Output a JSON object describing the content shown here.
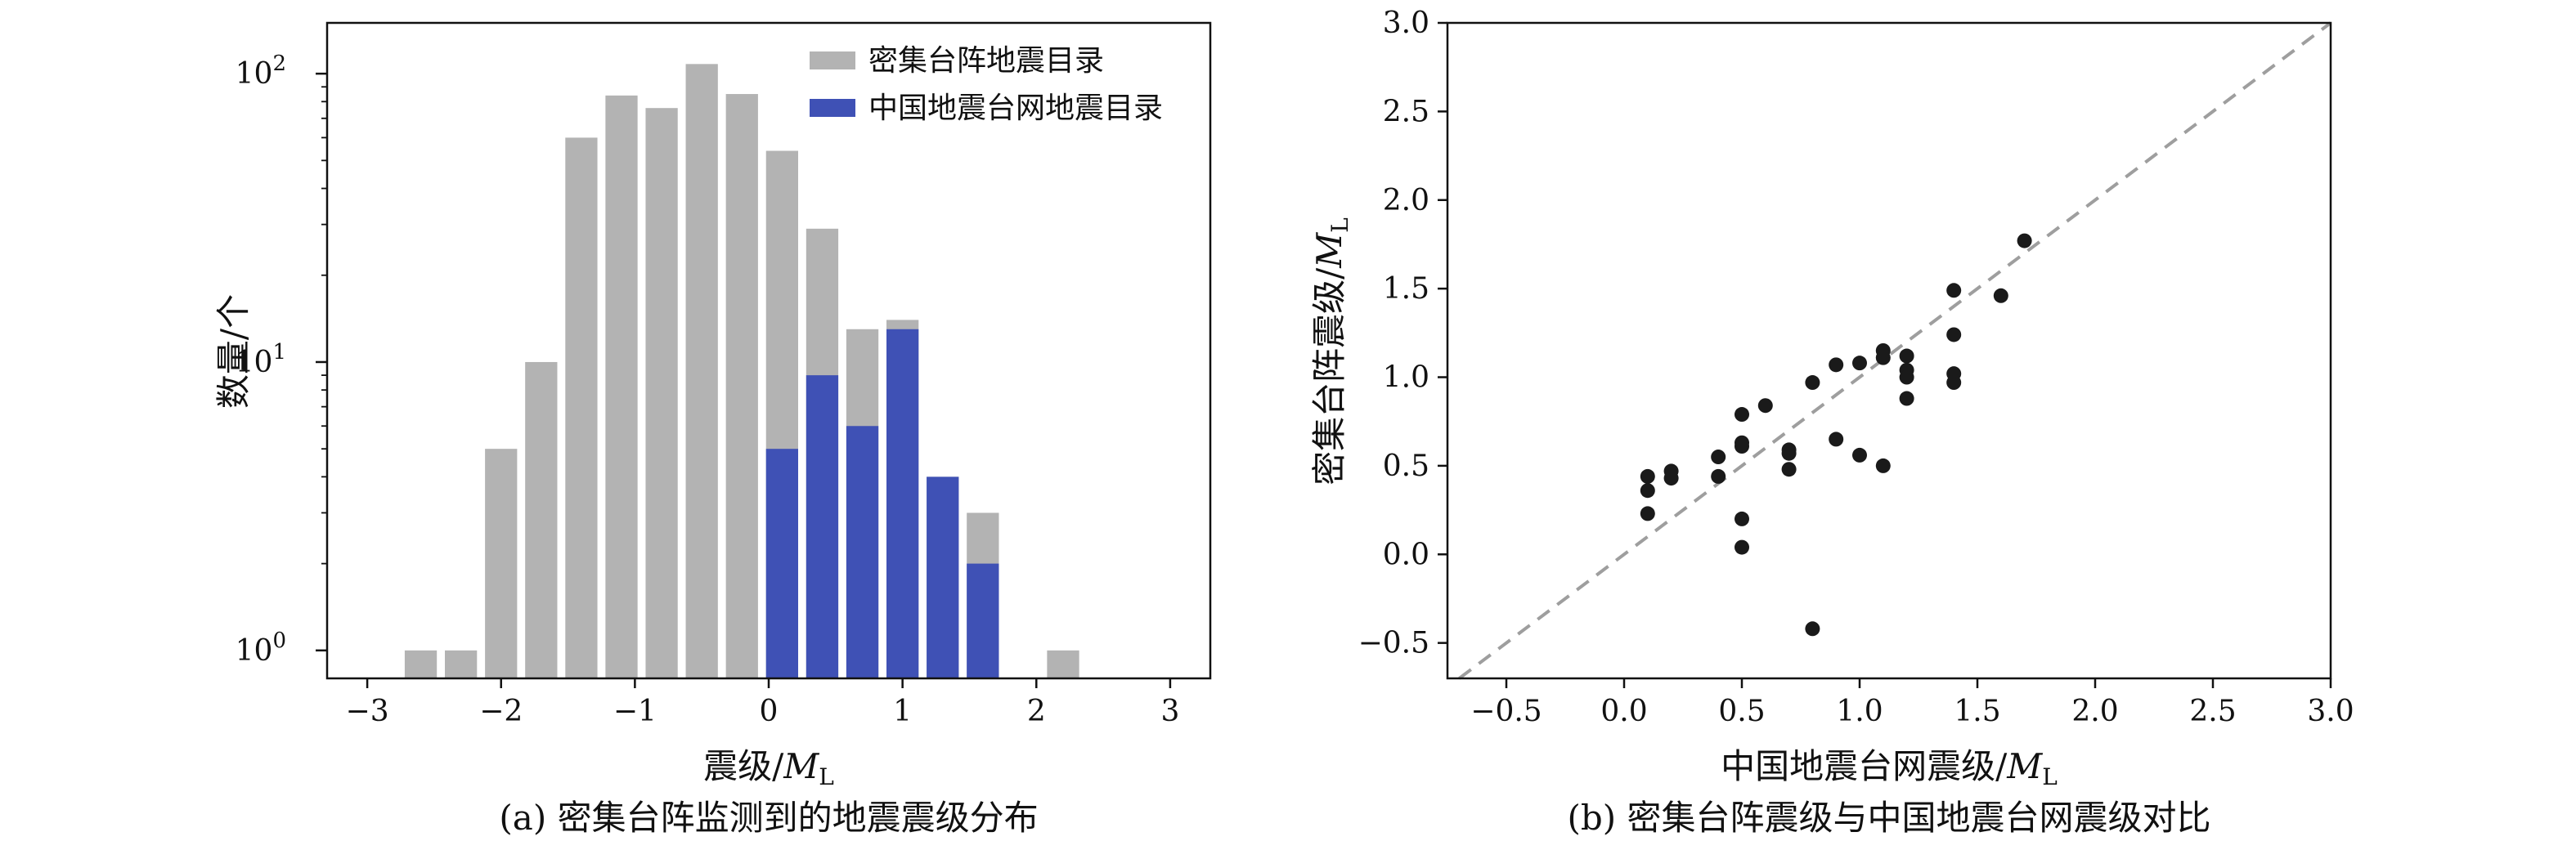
{
  "chart_data": [
    {
      "type": "bar",
      "xlabel_prefix": "震级/",
      "xlabel_var": "M",
      "xlabel_sub": "L",
      "ylabel": "数量/个",
      "caption": "(a) 密集台阵监测到的地震震级分布",
      "yscale": "log",
      "ylim": [
        0.8,
        150
      ],
      "xlim": [
        -3.3,
        3.3
      ],
      "xticks": [
        -3,
        -2,
        -1,
        0,
        1,
        2,
        3
      ],
      "xtick_labels": [
        "−3",
        "−2",
        "−1",
        "0",
        "1",
        "2",
        "3"
      ],
      "yticks": [
        {
          "value": 1,
          "base": "10",
          "exp": "0"
        },
        {
          "value": 10,
          "base": "10",
          "exp": "1"
        },
        {
          "value": 100,
          "base": "10",
          "exp": "2"
        }
      ],
      "legend_position": "top-right",
      "series": [
        {
          "name": "密集台阵地震目录",
          "color": "#b3b3b3",
          "x": [
            -2.6,
            -2.3,
            -2.0,
            -1.7,
            -1.4,
            -1.1,
            -0.8,
            -0.5,
            -0.2,
            0.1,
            0.4,
            0.7,
            1.0,
            1.3,
            1.6,
            2.2
          ],
          "values": [
            1,
            1,
            5,
            10,
            60,
            84,
            76,
            108,
            85,
            54,
            29,
            13,
            14,
            4,
            3,
            1
          ]
        },
        {
          "name": "中国地震台网地震目录",
          "color": "#3f51b5",
          "x": [
            0.1,
            0.4,
            0.7,
            1.0,
            1.3,
            1.6
          ],
          "values": [
            5,
            9,
            6,
            13,
            4,
            2
          ]
        }
      ]
    },
    {
      "type": "scatter",
      "xlabel_prefix": "中国地震台网震级/",
      "xlabel_var": "M",
      "xlabel_sub": "L",
      "ylabel_prefix": "密集台阵震级/",
      "ylabel_var": "M",
      "ylabel_sub": "L",
      "caption": "(b) 密集台阵震级与中国地震台网震级对比",
      "xlim": [
        -0.75,
        3.0
      ],
      "ylim": [
        -0.7,
        3.0
      ],
      "xticks": [
        -0.5,
        0.0,
        0.5,
        1.0,
        1.5,
        2.0,
        2.5,
        3.0
      ],
      "xtick_labels": [
        "−0.5",
        "0.0",
        "0.5",
        "1.0",
        "1.5",
        "2.0",
        "2.5",
        "3.0"
      ],
      "yticks": [
        -0.5,
        0.0,
        0.5,
        1.0,
        1.5,
        2.0,
        2.5,
        3.0
      ],
      "ytick_labels": [
        "−0.5",
        "0.0",
        "0.5",
        "1.0",
        "1.5",
        "2.0",
        "2.5",
        "3.0"
      ],
      "reference_line": "y = x (dashed, gray)",
      "marker_color": "#1a1a1a",
      "points": [
        {
          "x": 0.1,
          "y": 0.44
        },
        {
          "x": 0.1,
          "y": 0.36
        },
        {
          "x": 0.1,
          "y": 0.23
        },
        {
          "x": 0.2,
          "y": 0.47
        },
        {
          "x": 0.2,
          "y": 0.43
        },
        {
          "x": 0.4,
          "y": 0.55
        },
        {
          "x": 0.4,
          "y": 0.44
        },
        {
          "x": 0.5,
          "y": 0.79
        },
        {
          "x": 0.5,
          "y": 0.63
        },
        {
          "x": 0.5,
          "y": 0.61
        },
        {
          "x": 0.5,
          "y": 0.2
        },
        {
          "x": 0.5,
          "y": 0.04
        },
        {
          "x": 0.6,
          "y": 0.84
        },
        {
          "x": 0.7,
          "y": 0.59
        },
        {
          "x": 0.7,
          "y": 0.57
        },
        {
          "x": 0.7,
          "y": 0.48
        },
        {
          "x": 0.8,
          "y": 0.97
        },
        {
          "x": 0.8,
          "y": -0.42
        },
        {
          "x": 0.9,
          "y": 1.07
        },
        {
          "x": 0.9,
          "y": 0.65
        },
        {
          "x": 1.0,
          "y": 1.08
        },
        {
          "x": 1.0,
          "y": 0.56
        },
        {
          "x": 1.1,
          "y": 1.15
        },
        {
          "x": 1.1,
          "y": 1.11
        },
        {
          "x": 1.1,
          "y": 0.5
        },
        {
          "x": 1.2,
          "y": 1.12
        },
        {
          "x": 1.2,
          "y": 1.04
        },
        {
          "x": 1.2,
          "y": 1.0
        },
        {
          "x": 1.2,
          "y": 0.88
        },
        {
          "x": 1.4,
          "y": 1.49
        },
        {
          "x": 1.4,
          "y": 1.24
        },
        {
          "x": 1.4,
          "y": 1.02
        },
        {
          "x": 1.4,
          "y": 0.97
        },
        {
          "x": 1.6,
          "y": 1.46
        },
        {
          "x": 1.7,
          "y": 1.77
        }
      ]
    }
  ]
}
